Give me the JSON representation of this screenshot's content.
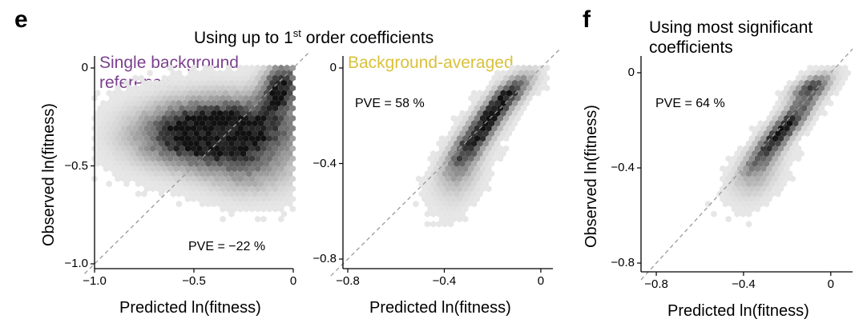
{
  "labels": {
    "panel_e": "e",
    "panel_f": "f",
    "title_e_prefix": "Using up to 1",
    "title_e_sup": "st",
    "title_e_suffix": " order coefficients",
    "title_f_line1": "Using most significant",
    "title_f_line2": "coefficients"
  },
  "colors": {
    "purple": "#7b3f8e",
    "yellow": "#d9c13b",
    "hex_light": "#e6e6e6",
    "hex_dark": "#111111",
    "diagonal": "#9a9a9a"
  },
  "chart_data": [
    {
      "type": "hexbin",
      "panel": "e",
      "subtitle_line1": "Single background",
      "subtitle_line2": "reference",
      "annotation": "PVE = −22 %",
      "xlabel": "Predicted ln(fitness)",
      "ylabel": "Observed ln(fitness)",
      "xlim": [
        -1.0,
        0.0
      ],
      "ylim": [
        -1.0,
        0.0
      ],
      "xticks": [
        -1.0,
        -0.5,
        0
      ],
      "xtick_labels": [
        "−1.0",
        "−0.5",
        "0"
      ],
      "yticks": [
        0,
        -0.5,
        -1.0
      ],
      "ytick_labels": [
        "0",
        "−0.5",
        "−1.0"
      ],
      "diagonal": "y = x",
      "density_blobs": [
        {
          "cx": -0.3,
          "cy": -0.32,
          "sx": 0.28,
          "sy": 0.13,
          "rho": 0.1,
          "w": 1.0
        },
        {
          "cx": -0.06,
          "cy": -0.08,
          "sx": 0.07,
          "sy": 0.09,
          "rho": 0.2,
          "w": 0.9
        },
        {
          "cx": -0.55,
          "cy": -0.34,
          "sx": 0.22,
          "sy": 0.12,
          "rho": 0.0,
          "w": 0.5
        },
        {
          "cx": -0.2,
          "cy": -0.55,
          "sx": 0.17,
          "sy": 0.1,
          "rho": 0.0,
          "w": 0.35
        }
      ]
    },
    {
      "type": "hexbin",
      "panel": "e",
      "subtitle_line1": "Background-averaged",
      "annotation": "PVE = 58 %",
      "xlabel": "Predicted ln(fitness)",
      "ylabel": "",
      "xlim": [
        -0.82,
        0.05
      ],
      "ylim": [
        -0.82,
        0.0
      ],
      "xticks": [
        -0.8,
        -0.4,
        0
      ],
      "xtick_labels": [
        "−0.8",
        "−0.4",
        "0"
      ],
      "yticks": [
        0,
        -0.4,
        -0.8
      ],
      "ytick_labels": [
        "0",
        "−0.4",
        "−0.8"
      ],
      "diagonal": "y = x",
      "density_blobs": [
        {
          "cx": -0.25,
          "cy": -0.26,
          "sx": 0.1,
          "sy": 0.12,
          "rho": 0.85,
          "w": 1.0
        },
        {
          "cx": -0.12,
          "cy": -0.1,
          "sx": 0.07,
          "sy": 0.06,
          "rho": 0.7,
          "w": 0.6
        },
        {
          "cx": -0.32,
          "cy": -0.45,
          "sx": 0.07,
          "sy": 0.1,
          "rho": 0.5,
          "w": 0.35
        }
      ]
    },
    {
      "type": "hexbin",
      "panel": "f",
      "annotation": "PVE = 64 %",
      "xlabel": "Predicted ln(fitness)",
      "ylabel": "Observed ln(fitness)",
      "xlim": [
        -0.87,
        0.1
      ],
      "ylim": [
        -0.82,
        0.02
      ],
      "xticks": [
        -0.8,
        -0.4,
        0
      ],
      "xtick_labels": [
        "−0.8",
        "−0.4",
        "0"
      ],
      "yticks": [
        0,
        -0.4,
        -0.8
      ],
      "ytick_labels": [
        "0",
        "−0.4",
        "−0.8"
      ],
      "diagonal": "y = x",
      "density_blobs": [
        {
          "cx": -0.22,
          "cy": -0.24,
          "sx": 0.12,
          "sy": 0.12,
          "rho": 0.9,
          "w": 1.0
        },
        {
          "cx": -0.1,
          "cy": -0.06,
          "sx": 0.07,
          "sy": 0.04,
          "rho": 0.6,
          "w": 0.6
        },
        {
          "cx": -0.32,
          "cy": -0.43,
          "sx": 0.08,
          "sy": 0.09,
          "rho": 0.5,
          "w": 0.35
        }
      ]
    }
  ]
}
